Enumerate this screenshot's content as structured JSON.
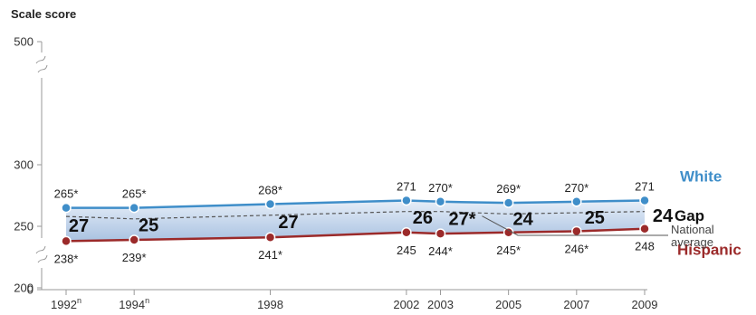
{
  "chart_data": {
    "type": "line",
    "ylabel": "Scale score",
    "y_ticks": [
      "0",
      "200",
      "250",
      "300",
      "500"
    ],
    "categories": [
      "1992",
      "1994",
      "1998",
      "2002",
      "2003",
      "2005",
      "2007",
      "2009"
    ],
    "category_marks": [
      "n",
      "n",
      "",
      "",
      "",
      "",
      "",
      ""
    ],
    "series": [
      {
        "name": "White",
        "color": "#3f8ec9",
        "values": [
          265,
          265,
          268,
          271,
          270,
          269,
          270,
          271
        ],
        "labels": [
          "265*",
          "265*",
          "268*",
          "271",
          "270*",
          "269*",
          "270*",
          "271"
        ]
      },
      {
        "name": "Hispanic",
        "color": "#9b2a2a",
        "values": [
          238,
          239,
          241,
          245,
          244,
          245,
          246,
          248
        ],
        "labels": [
          "238*",
          "239*",
          "241*",
          "245",
          "244*",
          "245*",
          "246*",
          "248"
        ]
      }
    ],
    "gaps": [
      "27",
      "25",
      "27",
      "26",
      "27*",
      "24",
      "25",
      "24"
    ],
    "gap_label": "Gap",
    "national_average_label": "National average",
    "national_average_values": [
      258,
      256,
      259,
      262,
      262,
      260,
      261,
      262
    ]
  }
}
